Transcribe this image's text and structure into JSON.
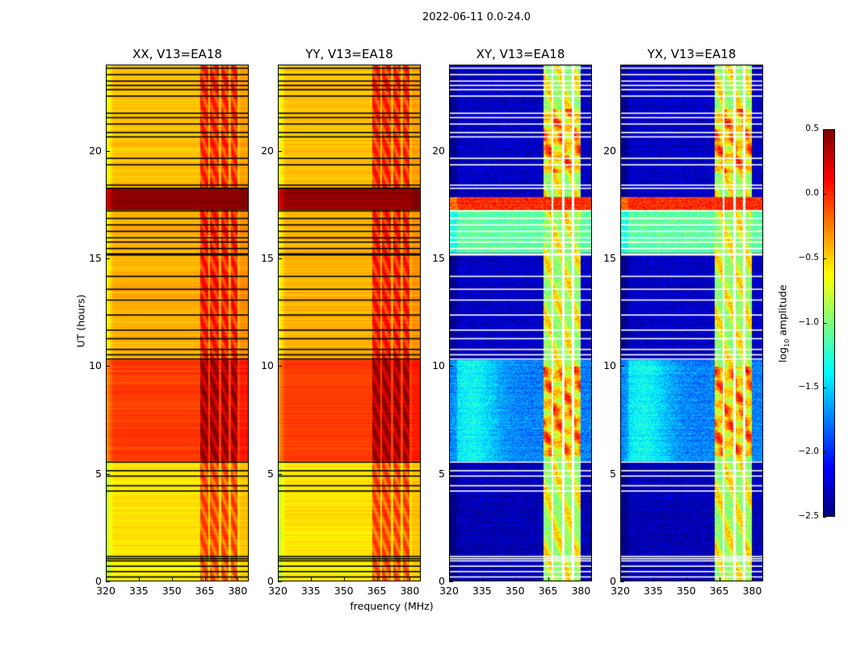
{
  "chart_data": {
    "type": "heatmap",
    "title": "2022-06-11 0.0-24.0",
    "xlabel": "frequency (MHz)",
    "ylabel": "UT (hours)",
    "xlim": [
      320,
      385
    ],
    "ylim": [
      0,
      24
    ],
    "xticks": [
      "320",
      "335",
      "350",
      "365",
      "380"
    ],
    "yticks": [
      "0",
      "5",
      "10",
      "15",
      "20"
    ],
    "colormap": "jet",
    "colorbar": {
      "label_prefix": "log",
      "label_sub": "10",
      "label_suffix": " amplitude",
      "range": [
        -2.5,
        0.5
      ],
      "ticks": [
        "0.5",
        "0.0",
        "−0.5",
        "−1.0",
        "−1.5",
        "−2.0",
        "−2.5"
      ]
    },
    "panels": [
      {
        "title": "XX, V13=EA18",
        "kind": "parallel",
        "flag_color": "#000000"
      },
      {
        "title": "YY, V13=EA18",
        "kind": "parallel",
        "flag_color": "#000000"
      },
      {
        "title": "XY, V13=EA18",
        "kind": "cross",
        "flag_color": "#ffffff"
      },
      {
        "title": "YX, V13=EA18",
        "kind": "cross",
        "flag_color": "#ffffff"
      }
    ],
    "rfi_channels_mhz": [
      [
        363,
        366.5
      ],
      [
        367.5,
        371.5
      ],
      [
        372.5,
        376
      ],
      [
        377,
        380
      ]
    ],
    "parallel_segments_hours": [
      {
        "from": 0,
        "to": 1.2,
        "value": -0.6
      },
      {
        "from": 1.2,
        "to": 5.6,
        "value": -0.55
      },
      {
        "from": 5.6,
        "to": 10.3,
        "value": -0.05
      },
      {
        "from": 10.3,
        "to": 17.3,
        "value": -0.4
      },
      {
        "from": 17.3,
        "to": 18.3,
        "value": 0.45
      },
      {
        "from": 18.3,
        "to": 24,
        "value": -0.45
      }
    ],
    "cross_segments_hours": [
      {
        "from": 0,
        "to": 5.6,
        "value": -2.35
      },
      {
        "from": 5.6,
        "to": 10.3,
        "value": -1.75
      },
      {
        "from": 10.3,
        "to": 15.3,
        "value": -2.3
      },
      {
        "from": 15.3,
        "to": 17.3,
        "value": -1.1
      },
      {
        "from": 17.3,
        "to": 17.9,
        "value": 0.0
      },
      {
        "from": 17.9,
        "to": 24,
        "value": -2.3
      }
    ],
    "flagged_times_hours": [
      0.2,
      0.45,
      0.7,
      0.95,
      1.05,
      1.15,
      4.2,
      4.45,
      4.9,
      5.15,
      5.55,
      10.35,
      10.55,
      10.8,
      11.3,
      11.7,
      12.4,
      13.1,
      13.6,
      14.2,
      15.2,
      15.25,
      15.5,
      15.8,
      16.0,
      16.3,
      16.6,
      16.9,
      17.25,
      18.3,
      18.45,
      19.4,
      19.7,
      20.7,
      20.9,
      21.3,
      21.6,
      21.8,
      22.6,
      22.9,
      23.1,
      23.3,
      23.6,
      23.9
    ]
  }
}
